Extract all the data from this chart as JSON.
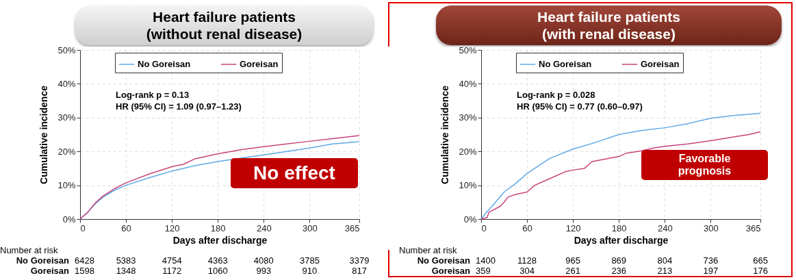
{
  "chart_data": [
    {
      "type": "line",
      "title": "Heart failure patients",
      "subtitle": "(without renal disease)",
      "xlabel": "Days after discharge",
      "ylabel": "Cumulative incidence",
      "legend": "top",
      "grid": true,
      "xlim": [
        0,
        365
      ],
      "xticks": [
        0,
        60,
        120,
        180,
        240,
        300,
        365
      ],
      "ylim": [
        0,
        50
      ],
      "yticks": [
        {
          "value": 0,
          "label": "0%"
        },
        {
          "value": 10,
          "label": "10%"
        },
        {
          "value": 20,
          "label": "20%"
        },
        {
          "value": 30,
          "label": "30%"
        },
        {
          "value": 40,
          "label": "40%"
        },
        {
          "value": 50,
          "label": "50%"
        }
      ],
      "series": [
        {
          "name": "No Goreisan",
          "color": "#5ea8e8",
          "x": [
            0,
            10,
            20,
            30,
            45,
            60,
            90,
            120,
            150,
            180,
            210,
            240,
            270,
            300,
            330,
            365
          ],
          "values": [
            0,
            2,
            4.5,
            6.5,
            8.5,
            10,
            12.2,
            14.2,
            15.8,
            17,
            18,
            19,
            20,
            21,
            22.2,
            22.9
          ]
        },
        {
          "name": "Goreisan",
          "color": "#c8437a",
          "x": [
            0,
            10,
            20,
            30,
            45,
            60,
            90,
            120,
            135,
            150,
            180,
            210,
            240,
            270,
            300,
            330,
            365
          ],
          "values": [
            0,
            2,
            4.8,
            6.8,
            9,
            10.7,
            13.3,
            15.5,
            16.2,
            17.8,
            19.3,
            20.5,
            21.4,
            22.2,
            23,
            23.8,
            24.7
          ]
        }
      ],
      "annotations": [
        "Log-rank p = 0.13",
        "HR (95% CI) = 1.09 (0.97–1.23)",
        "No effect",
        "Number at risk",
        "No Goreisan 6428 5383 4754 4363 4080 3785 3379",
        "Goreisan 1598 1348 1172 1060 993 910 817"
      ]
    },
    {
      "type": "line",
      "title": "Heart failure patients",
      "subtitle": "(with renal disease)",
      "xlabel": "Days after discharge",
      "ylabel": "Cumulative incidence",
      "legend": "top",
      "grid": true,
      "xlim": [
        0,
        365
      ],
      "xticks": [
        0,
        60,
        120,
        180,
        240,
        300,
        365
      ],
      "ylim": [
        0,
        50
      ],
      "yticks": [
        {
          "value": 0,
          "label": "0%"
        },
        {
          "value": 10,
          "label": "10%"
        },
        {
          "value": 20,
          "label": "20%"
        },
        {
          "value": 30,
          "label": "30%"
        },
        {
          "value": 40,
          "label": "40%"
        },
        {
          "value": 50,
          "label": "50%"
        }
      ],
      "series": [
        {
          "name": "No Goreisan",
          "color": "#5ea8e8",
          "x": [
            0,
            5,
            15,
            30,
            45,
            60,
            90,
            120,
            150,
            180,
            210,
            240,
            270,
            300,
            330,
            365
          ],
          "values": [
            0,
            1.5,
            4,
            8,
            10.5,
            13.5,
            18,
            20.7,
            22.7,
            25,
            26.2,
            27,
            28.2,
            29.8,
            30.6,
            31.3
          ]
        },
        {
          "name": "Goreisan",
          "color": "#c8437a",
          "x": [
            0,
            8,
            10,
            25,
            30,
            35,
            45,
            60,
            70,
            90,
            110,
            120,
            135,
            145,
            180,
            190,
            210,
            225,
            240,
            270,
            300,
            330,
            350,
            365
          ],
          "values": [
            0,
            0.5,
            2,
            3.8,
            5,
            6.5,
            7.3,
            8,
            10,
            12,
            14,
            14.5,
            15,
            17,
            18.5,
            19.5,
            20.2,
            21,
            21.5,
            22.2,
            23.2,
            24.3,
            25,
            25.8
          ]
        }
      ],
      "annotations": [
        "Log-rank p = 0.028",
        "HR (95% CI) = 0.77 (0.60–0.97)",
        "Favorable prognosis",
        "Number at risk",
        "No Goreisan 1400 1128 965 869 804 736 665",
        "Goreisan 359 304 261 236 213 197 176"
      ]
    }
  ]
}
